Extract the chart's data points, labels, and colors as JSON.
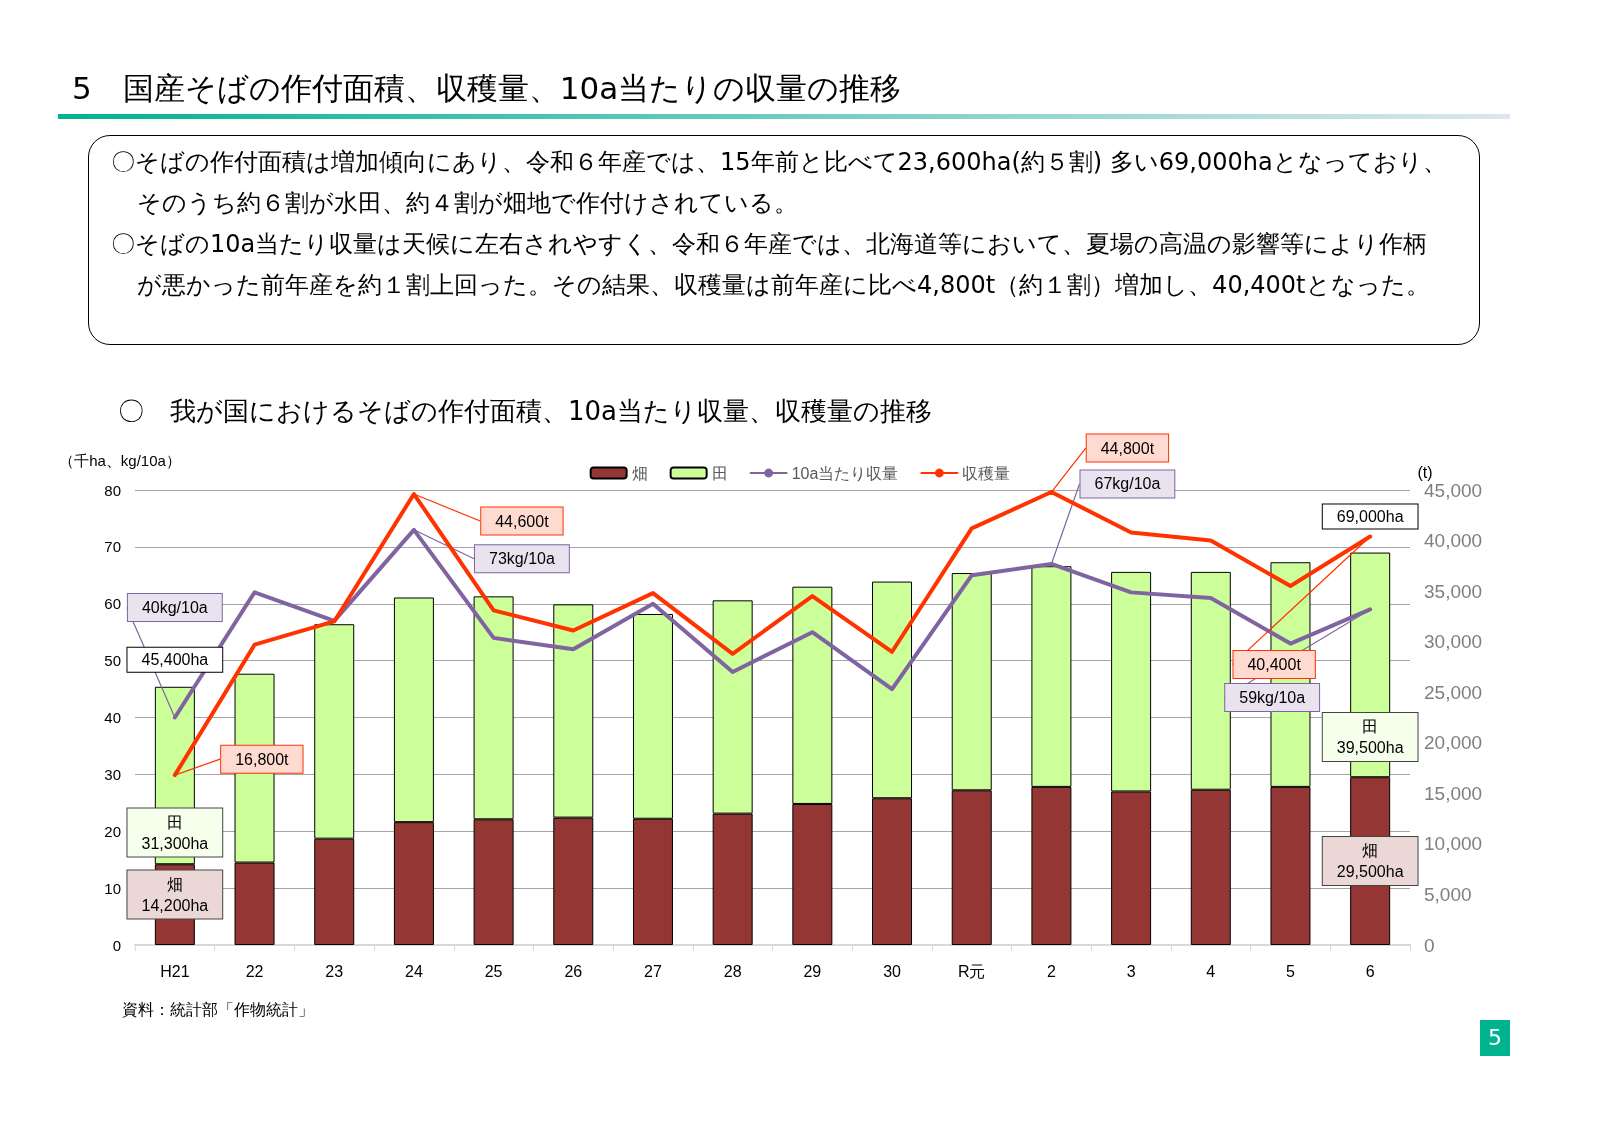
{
  "chart_data": {
    "type": "bar",
    "title": "5　国産そばの作付面積、収穫量、10a当たりの収量の推移",
    "subtitle": "〇　我が国におけるそばの作付面積、10a当たり収量、収穫量の推移",
    "ylabel": "（千ha、kg/10a）",
    "y2label": "(t)",
    "annotations": [
      "〇そばの作付面積は増加傾向にあり、令和６年産では、15年前と比べて23,600ha(約５割) 多い69,000haとなっており、そのうち約６割が水田、約４割が畑地で作付けされている。",
      "〇そばの10a当たり収量は天候に左右されやすく、令和６年産では、北海道等において、夏場の高温の影響等により作柄が悪かった前年産を約１割上回った。その結果、収穫量は前年産に比べ4,800t（約１割）増加し、40,400tとなった。",
      "資料：統計部「作物統計」",
      "5"
    ],
    "categories": [
      "H21",
      "22",
      "23",
      "24",
      "25",
      "26",
      "27",
      "28",
      "29",
      "30",
      "R元",
      "2",
      "3",
      "4",
      "5",
      "6"
    ],
    "stacked": true,
    "series": [
      {
        "name": "畑",
        "color": "#943634",
        "values": [
          14.2,
          14.5,
          18.7,
          21.6,
          22.1,
          22.4,
          22.2,
          23.1,
          24.8,
          25.8,
          27.2,
          27.8,
          27.0,
          27.3,
          27.8,
          29.5
        ],
        "value_labels": [
          "畑\n14,200ha",
          null,
          null,
          null,
          null,
          null,
          null,
          null,
          null,
          null,
          null,
          null,
          null,
          null,
          null,
          "畑\n29,500ha"
        ]
      },
      {
        "name": "田",
        "color": "#ccff99",
        "values": [
          31.2,
          33.2,
          37.7,
          39.5,
          39.2,
          37.5,
          36.0,
          37.5,
          38.2,
          38.1,
          38.2,
          38.8,
          38.6,
          38.3,
          39.5,
          39.5
        ],
        "value_labels": [
          "田\n31,300ha",
          null,
          null,
          null,
          null,
          null,
          null,
          null,
          null,
          null,
          null,
          null,
          null,
          null,
          null,
          "田\n39,500ha"
        ]
      },
      {
        "name": "10a当たり収量",
        "type": "line",
        "color": "#8064a2",
        "values": [
          40,
          62,
          57,
          73,
          54,
          52,
          60,
          48,
          55,
          45,
          65,
          67,
          62,
          61,
          53,
          59
        ],
        "value_labels": [
          "40kg/10a",
          null,
          null,
          "73kg/10a",
          null,
          null,
          null,
          null,
          null,
          null,
          null,
          "67kg/10a",
          null,
          null,
          null,
          "59kg/10a"
        ]
      },
      {
        "name": "収穫量",
        "type": "line",
        "axis": "y2",
        "color": "#ff3300",
        "values": [
          16800,
          29700,
          32000,
          44600,
          33100,
          31100,
          34800,
          28800,
          34500,
          29000,
          41200,
          44800,
          40800,
          40000,
          35500,
          40400
        ],
        "value_labels": [
          "16,800t",
          null,
          null,
          "44,600t",
          null,
          null,
          null,
          null,
          null,
          null,
          null,
          "44,800t",
          null,
          null,
          null,
          "40,400t"
        ]
      }
    ],
    "totals": [
      "45,400ha",
      null,
      null,
      null,
      null,
      null,
      null,
      null,
      null,
      null,
      null,
      null,
      null,
      null,
      null,
      "69,000ha"
    ],
    "ylim": [
      0,
      80
    ],
    "yticks": [
      0,
      10,
      20,
      30,
      40,
      50,
      60,
      70,
      80
    ],
    "y2lim": [
      0,
      45000
    ],
    "y2ticks": [
      0,
      {
        "value": 5000,
        "label": "5,000"
      },
      {
        "value": 10000,
        "label": "10,000"
      },
      {
        "value": 15000,
        "label": "15,000"
      },
      {
        "value": 20000,
        "label": "20,000"
      },
      {
        "value": 25000,
        "label": "25,000"
      },
      {
        "value": 30000,
        "label": "30,000"
      },
      {
        "value": 35000,
        "label": "35,000"
      },
      {
        "value": 40000,
        "label": "40,000"
      },
      {
        "value": 45000,
        "label": "45,000"
      }
    ],
    "grid": "y",
    "legend": "top",
    "line_style": "solid"
  }
}
